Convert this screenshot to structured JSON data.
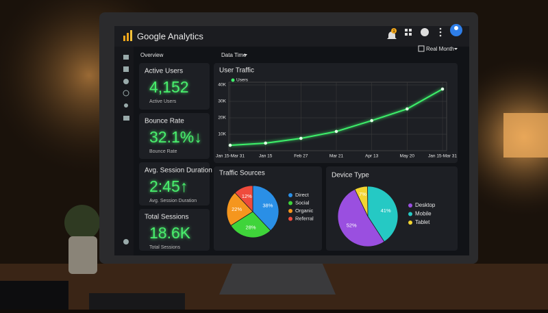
{
  "header": {
    "title": "Google Analytics",
    "badge": "1"
  },
  "toolbar": {
    "breadcrumb": "Overview",
    "filter": "Data Time",
    "period": "Real Month"
  },
  "kpis": [
    {
      "title": "Active Users",
      "value": "4,152",
      "caption": "Active Users"
    },
    {
      "title": "Bounce Rate",
      "value": "32.1%↓",
      "caption": "Bounce Rate"
    },
    {
      "title": "Avg. Session Duration",
      "value": "2:45↑",
      "caption": "Avg. Session Duration"
    },
    {
      "title": "Total Sessions",
      "value": "18.6K",
      "caption": "Total Sessions"
    }
  ],
  "chart_data": [
    {
      "type": "line",
      "title": "User Traffic",
      "categories": [
        "Jan 15-Mar 31",
        "Jan 15",
        "Feb 27",
        "Mar 21",
        "Apr 13",
        "May 20",
        "Jan 15-Mar 31"
      ],
      "series": [
        {
          "name": "Users",
          "color": "#3df06a",
          "values": [
            3300,
            4600,
            7500,
            11700,
            18300,
            25400,
            37500
          ]
        }
      ],
      "ylim": [
        0,
        40000
      ],
      "yticks": [
        {
          "value": 10000,
          "label": "10K"
        },
        {
          "value": 20000,
          "label": "20K"
        },
        {
          "value": 30000,
          "label": "30K"
        },
        {
          "value": 40000,
          "label": "40K"
        }
      ],
      "grid": true
    },
    {
      "type": "pie",
      "title": "Traffic Sources",
      "categories": [
        "Direct",
        "Social",
        "Organic",
        "Referral"
      ],
      "values": [
        38,
        28,
        22,
        12
      ],
      "value_labels": [
        "38%",
        "28%",
        "22%",
        "12%"
      ],
      "colors": [
        "#2a8fe6",
        "#3fd43a",
        "#f5961e",
        "#ef4b3c"
      ]
    },
    {
      "type": "pie",
      "title": "Device Type",
      "categories": [
        "Desktop",
        "Mobile",
        "Tablet"
      ],
      "values": [
        52,
        41,
        7
      ],
      "value_labels": [
        "52%",
        "41%",
        "7%"
      ],
      "colors": [
        "#9a4fe0",
        "#25c9c4",
        "#f3d531"
      ]
    }
  ]
}
